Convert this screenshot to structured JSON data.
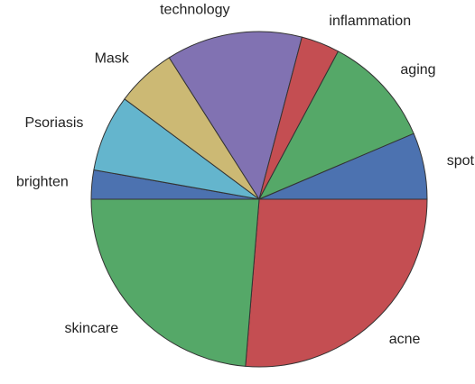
{
  "chart_data": {
    "type": "pie",
    "title": "",
    "start_angle_deg": 0,
    "direction": "clockwise",
    "slices": [
      {
        "label": "acne",
        "value": 26.3,
        "color": "#c44e52"
      },
      {
        "label": "skincare",
        "value": 23.7,
        "color": "#55a868"
      },
      {
        "label": "brighten",
        "value": 2.8,
        "color": "#4c72b0"
      },
      {
        "label": "Psoriasis",
        "value": 7.4,
        "color": "#64b5cd"
      },
      {
        "label": "Mask",
        "value": 5.8,
        "color": "#ccb974"
      },
      {
        "label": "technology",
        "value": 13.1,
        "color": "#8172b2"
      },
      {
        "label": "inflammation",
        "value": 3.7,
        "color": "#c44e52"
      },
      {
        "label": "aging",
        "value": 10.8,
        "color": "#55a868"
      },
      {
        "label": "spot",
        "value": 6.4,
        "color": "#4c72b0"
      }
    ]
  }
}
